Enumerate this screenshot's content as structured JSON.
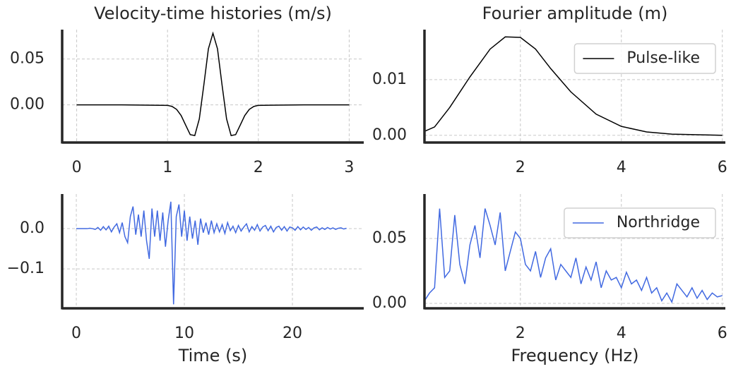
{
  "chart_data": [
    {
      "type": "line",
      "title": "Velocity-time histories (m/s)",
      "xlim": [
        -0.16,
        3.16
      ],
      "xticks": [
        0,
        1,
        2,
        3
      ],
      "ylim": [
        -0.041,
        0.082
      ],
      "yticks": [
        {
          "value": 0,
          "label": "0.00"
        },
        {
          "value": 0.05,
          "label": "0.05"
        }
      ],
      "grid": true,
      "series": [
        {
          "color": "#000000",
          "x": [
            0,
            0.5,
            1.0,
            1.05,
            1.1,
            1.15,
            1.2,
            1.25,
            1.3,
            1.35,
            1.4,
            1.45,
            1.5,
            1.55,
            1.6,
            1.65,
            1.7,
            1.75,
            1.8,
            1.85,
            1.9,
            1.95,
            2.0,
            2.5,
            3.0
          ],
          "values": [
            0,
            0,
            -0.0005,
            -0.0017,
            -0.0049,
            -0.0116,
            -0.0221,
            -0.0324,
            -0.0334,
            -0.0152,
            0.0219,
            0.0611,
            0.078,
            0.0611,
            0.0219,
            -0.0152,
            -0.0334,
            -0.0324,
            -0.0221,
            -0.0116,
            -0.0049,
            -0.0017,
            -0.0005,
            0,
            0
          ]
        }
      ]
    },
    {
      "type": "line",
      "title": "Fourier amplitude (m)",
      "xlim": [
        0.1,
        6.06
      ],
      "xticks": [
        2,
        4,
        6
      ],
      "ylim": [
        -0.0013,
        0.019
      ],
      "yticks": [
        {
          "value": 0,
          "label": "0.00"
        },
        {
          "value": 0.01,
          "label": "0.01"
        }
      ],
      "grid": true,
      "legend": "upper right",
      "series": [
        {
          "name": "Pulse-like",
          "color": "#000000",
          "x": [
            0.1,
            0.3,
            0.6,
            1.0,
            1.4,
            1.7,
            2.0,
            2.3,
            2.6,
            3.0,
            3.5,
            4.0,
            4.5,
            5.0,
            6.0
          ],
          "values": [
            0.0007,
            0.0015,
            0.005,
            0.0105,
            0.0155,
            0.0177,
            0.0176,
            0.0155,
            0.012,
            0.0078,
            0.0038,
            0.0016,
            0.0006,
            0.0002,
            0.0
          ]
        }
      ]
    },
    {
      "type": "line",
      "xlabel": "Time (s)",
      "xlim": [
        -1.31,
        26.6
      ],
      "xticks": [
        0,
        10,
        20
      ],
      "ylim": [
        -0.198,
        0.086
      ],
      "yticks": [
        {
          "value": -0.1,
          "label": "−0.1"
        },
        {
          "value": 0,
          "label": "0.0"
        }
      ],
      "grid": true,
      "series": [
        {
          "color": "#4169e1",
          "x": [
            0,
            0.25,
            0.5,
            0.75,
            1,
            1.25,
            1.5,
            1.75,
            2,
            2.25,
            2.5,
            2.75,
            3,
            3.25,
            3.5,
            3.75,
            4,
            4.25,
            4.5,
            4.75,
            5,
            5.25,
            5.5,
            5.75,
            6,
            6.25,
            6.5,
            6.75,
            7,
            7.25,
            7.5,
            7.75,
            8,
            8.25,
            8.5,
            8.75,
            9,
            9.25,
            9.5,
            9.75,
            10,
            10.25,
            10.5,
            10.75,
            11,
            11.25,
            11.5,
            11.75,
            12,
            12.25,
            12.5,
            12.75,
            13,
            13.25,
            13.5,
            13.75,
            14,
            14.25,
            14.5,
            14.75,
            15,
            15.25,
            15.5,
            15.75,
            16,
            16.25,
            16.5,
            16.75,
            17,
            17.25,
            17.5,
            17.75,
            18,
            18.25,
            18.5,
            18.75,
            19,
            19.25,
            19.5,
            19.75,
            20,
            20.25,
            20.5,
            20.75,
            21,
            21.25,
            21.5,
            21.75,
            22,
            22.25,
            22.5,
            22.75,
            23,
            23.25,
            23.5,
            23.75,
            24,
            24.25,
            24.5,
            24.75,
            25
          ],
          "values": [
            0,
            0,
            0,
            0,
            0,
            0.001,
            0,
            -0.002,
            0.003,
            -0.004,
            0.005,
            -0.003,
            0.006,
            -0.008,
            0.004,
            0.012,
            -0.01,
            0.015,
            -0.02,
            -0.035,
            0.03,
            0.055,
            -0.015,
            0.035,
            -0.02,
            0.045,
            -0.03,
            -0.075,
            0.05,
            -0.02,
            0.045,
            -0.03,
            0.04,
            -0.045,
            0.02,
            0.067,
            -0.188,
            0.03,
            0.06,
            -0.02,
            0.045,
            -0.03,
            0.03,
            -0.025,
            0.02,
            -0.04,
            0.025,
            -0.01,
            0.015,
            -0.015,
            0.02,
            -0.01,
            0.012,
            -0.008,
            0.01,
            -0.012,
            0.015,
            -0.005,
            0.006,
            -0.01,
            0.008,
            -0.006,
            0.004,
            0.012,
            -0.008,
            0.005,
            -0.004,
            0.01,
            -0.006,
            0.004,
            0.008,
            -0.005,
            0.006,
            -0.008,
            0.003,
            0.006,
            -0.004,
            0.005,
            -0.006,
            0.004,
            0.002,
            -0.004,
            0.005,
            -0.003,
            0.004,
            -0.002,
            0.003,
            -0.004,
            0.002,
            0.004,
            -0.003,
            0.002,
            -0.002,
            0.003,
            -0.001,
            0.002,
            -0.002,
            0.001,
            0.002,
            -0.001,
            0.001
          ]
        }
      ]
    },
    {
      "type": "line",
      "xlabel": "Frequency (Hz)",
      "xlim": [
        0.1,
        6.06
      ],
      "xticks": [
        2,
        4,
        6
      ],
      "ylim": [
        -0.0038,
        0.0842
      ],
      "yticks": [
        {
          "value": 0,
          "label": "0.00"
        },
        {
          "value": 0.05,
          "label": "0.05"
        }
      ],
      "grid": true,
      "legend": "upper right",
      "series": [
        {
          "name": "Northridge",
          "color": "#4169e1",
          "x": [
            0.1,
            0.2,
            0.3,
            0.4,
            0.5,
            0.6,
            0.7,
            0.8,
            0.9,
            1.0,
            1.1,
            1.2,
            1.3,
            1.4,
            1.5,
            1.6,
            1.7,
            1.8,
            1.9,
            2.0,
            2.1,
            2.2,
            2.3,
            2.4,
            2.5,
            2.6,
            2.7,
            2.8,
            2.9,
            3.0,
            3.1,
            3.2,
            3.3,
            3.4,
            3.5,
            3.6,
            3.7,
            3.8,
            3.9,
            4.0,
            4.1,
            4.2,
            4.3,
            4.4,
            4.5,
            4.6,
            4.7,
            4.8,
            4.9,
            5.0,
            5.1,
            5.2,
            5.3,
            5.4,
            5.5,
            5.6,
            5.7,
            5.8,
            5.9,
            6.0
          ],
          "values": [
            0.002,
            0.008,
            0.012,
            0.073,
            0.02,
            0.025,
            0.068,
            0.03,
            0.015,
            0.045,
            0.06,
            0.035,
            0.073,
            0.06,
            0.045,
            0.07,
            0.025,
            0.04,
            0.055,
            0.05,
            0.03,
            0.025,
            0.04,
            0.02,
            0.035,
            0.042,
            0.018,
            0.03,
            0.025,
            0.02,
            0.035,
            0.015,
            0.028,
            0.018,
            0.032,
            0.012,
            0.025,
            0.018,
            0.02,
            0.012,
            0.024,
            0.015,
            0.018,
            0.01,
            0.02,
            0.008,
            0.012,
            0.002,
            0.008,
            0.001,
            0.015,
            0.01,
            0.005,
            0.012,
            0.004,
            0.01,
            0.003,
            0.008,
            0.005,
            0.006
          ]
        }
      ]
    }
  ]
}
